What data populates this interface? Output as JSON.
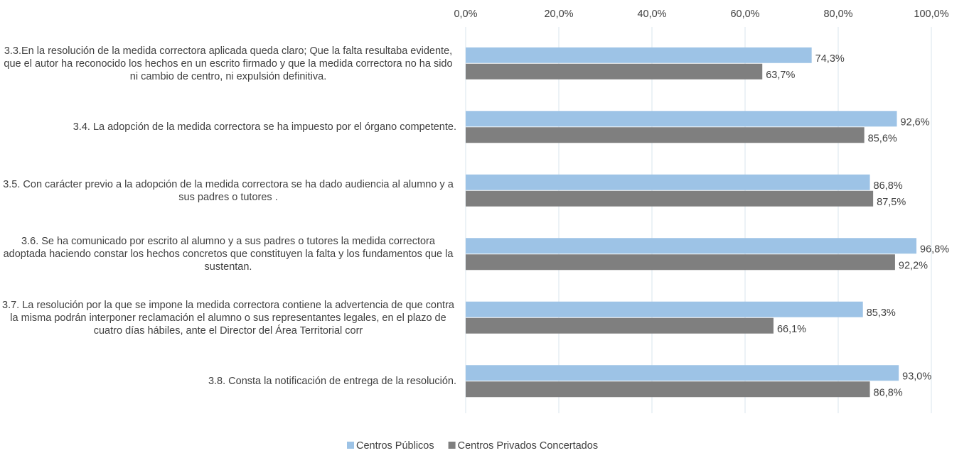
{
  "chart_data": {
    "type": "bar",
    "orientation": "horizontal",
    "categories": [
      "3.3.En la resolución de la medida correctora aplicada queda claro; Que la falta resultaba evidente, que el autor ha reconocido los hechos en un escrito firmado y que la medida correctora no ha sido ni cambio de centro, ni expulsión definitiva.",
      "3.4. La adopción de la medida correctora se ha impuesto por el órgano competente.",
      "3.5. Con carácter previo a la adopción de la medida correctora se ha dado audiencia al alumno y a sus padres o tutores .",
      "3.6. Se ha comunicado por escrito al alumno y a sus padres o tutores la medida correctora adoptada haciendo constar los hechos concretos que constituyen la falta y los fundamentos que la sustentan.",
      "3.7. La resolución por la que se impone la medida correctora contiene la advertencia de que contra la misma podrán interponer reclamación el alumno o sus representantes legales, en el plazo de cuatro días hábiles, ante el Director del Área Territorial corr",
      "3.8. Consta la notificación de entrega de la resolución."
    ],
    "series": [
      {
        "name": "Centros Públicos",
        "color": "#9dc3e6",
        "values": [
          74.3,
          92.6,
          86.8,
          96.8,
          85.3,
          93.0
        ],
        "value_labels": [
          "74,3%",
          "92,6%",
          "86,8%",
          "96,8%",
          "85,3%",
          "93,0%"
        ]
      },
      {
        "name": "Centros Privados Concertados",
        "color": "#7f7f7f",
        "values": [
          63.7,
          85.6,
          87.5,
          92.2,
          66.1,
          86.8
        ],
        "value_labels": [
          "63,7%",
          "85,6%",
          "87,5%",
          "92,2%",
          "66,1%",
          "86,8%"
        ]
      }
    ],
    "xlim": [
      0,
      100
    ],
    "xticks": [
      {
        "value": 0,
        "label": "0,0%"
      },
      {
        "value": 20,
        "label": "20,0%"
      },
      {
        "value": 40,
        "label": "40,0%"
      },
      {
        "value": 60,
        "label": "60,0%"
      },
      {
        "value": 80,
        "label": "80,0%"
      },
      {
        "value": 100,
        "label": "100,0%"
      }
    ],
    "grid": true,
    "legend": "bottom"
  }
}
